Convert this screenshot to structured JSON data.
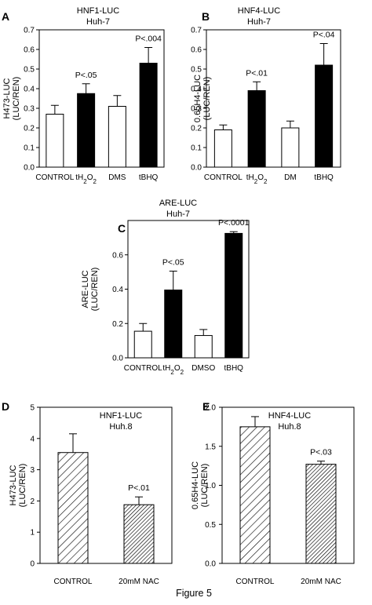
{
  "figure_caption": "Figure 5",
  "chart_data": [
    {
      "panel": "A",
      "type": "bar",
      "title": "HNF1-LUC",
      "subtitle": "Huh-7",
      "ylabel": [
        "H473-LUC",
        "(LUC/REN)"
      ],
      "ylim": [
        0,
        0.7
      ],
      "yticks": [
        "0.0",
        "0.1",
        "0.2",
        "0.3",
        "0.4",
        "0.5",
        "0.6",
        "0.7"
      ],
      "categories": [
        "CONTROL",
        "tH2O2",
        "DMS",
        "tBHQ"
      ],
      "values": [
        0.27,
        0.375,
        0.31,
        0.53
      ],
      "errors": [
        0.045,
        0.05,
        0.055,
        0.08
      ],
      "fills": [
        "white",
        "black",
        "white",
        "black"
      ],
      "annotations": [
        "",
        "P<.05",
        "",
        "P<.004"
      ]
    },
    {
      "panel": "B",
      "type": "bar",
      "title": "HNF4-LUC",
      "subtitle": "Huh-7",
      "ylabel": [
        "0.65H4-LUC",
        "(LUC/REN)"
      ],
      "ylim": [
        0,
        0.7
      ],
      "yticks": [
        "0.0",
        "0.1",
        "0.2",
        "0.3",
        "0.4",
        "0.5",
        "0.6",
        "0.7"
      ],
      "categories": [
        "CONTROL",
        "tH2O2",
        "DM",
        "tBHQ"
      ],
      "values": [
        0.19,
        0.39,
        0.2,
        0.52
      ],
      "errors": [
        0.025,
        0.045,
        0.035,
        0.11
      ],
      "fills": [
        "white",
        "black",
        "white",
        "black"
      ],
      "annotations": [
        "",
        "P<.01",
        "",
        "P<.04"
      ]
    },
    {
      "panel": "C",
      "type": "bar",
      "title": "ARE-LUC",
      "subtitle": "Huh-7",
      "ylabel": [
        "ARE-LUC",
        "(LUC/REN)"
      ],
      "ylim": [
        0,
        0.8
      ],
      "yticks": [
        "0.0",
        "0.2",
        "0.4",
        "0.6"
      ],
      "categories": [
        "CONTROL",
        "tH2O2",
        "DMSO",
        "tBHQ"
      ],
      "values": [
        0.155,
        0.395,
        0.13,
        0.725
      ],
      "errors": [
        0.045,
        0.11,
        0.035,
        0.01
      ],
      "fills": [
        "white",
        "black",
        "white",
        "black"
      ],
      "annotations": [
        "",
        "P<.05",
        "",
        "P<.0001"
      ]
    },
    {
      "panel": "D",
      "type": "bar",
      "title": "HNF1-LUC",
      "subtitle": "Huh.8",
      "ylabel": [
        "H473-LUC",
        "(LUC/REN)"
      ],
      "ylim": [
        0,
        5
      ],
      "yticks": [
        "0",
        "1",
        "2",
        "3",
        "4",
        "5"
      ],
      "categories": [
        "CONTROL",
        "20mM NAC"
      ],
      "values": [
        3.55,
        1.88
      ],
      "errors": [
        0.6,
        0.25
      ],
      "fills": [
        "hatch",
        "hatch-dense"
      ],
      "annotations": [
        "",
        "P<.01"
      ]
    },
    {
      "panel": "E",
      "type": "bar",
      "title": "HNF4-LUC",
      "subtitle": "Huh.8",
      "ylabel": [
        "0.65H4-LUC",
        "(LUC/REN)"
      ],
      "ylim": [
        0,
        2.0
      ],
      "yticks": [
        "0.0",
        "0.5",
        "1.0",
        "1.5",
        "2.0"
      ],
      "categories": [
        "CONTROL",
        "20mM NAC"
      ],
      "values": [
        1.75,
        1.27
      ],
      "errors": [
        0.13,
        0.04
      ],
      "fills": [
        "hatch",
        "hatch-dense"
      ],
      "annotations": [
        "",
        "P<.03"
      ]
    }
  ]
}
